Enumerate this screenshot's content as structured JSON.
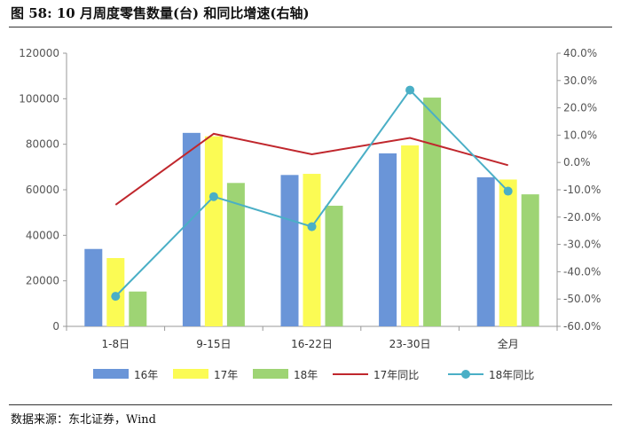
{
  "title": "图 58:  10 月周度零售数量(台)  和同比增速(右轴)",
  "source": "数据来源：东北证券，Wind",
  "chart_data": {
    "type": "bar",
    "categories": [
      "1-8日",
      "9-15日",
      "16-22日",
      "23-30日",
      "全月"
    ],
    "series": [
      {
        "name": "16年",
        "type": "bar",
        "axis": "left",
        "color": "#6a95d8",
        "values": [
          34000,
          85000,
          66500,
          76000,
          65500
        ]
      },
      {
        "name": "17年",
        "type": "bar",
        "axis": "left",
        "color": "#fbfb54",
        "values": [
          30000,
          83500,
          67000,
          79500,
          64500
        ]
      },
      {
        "name": "18年",
        "type": "bar",
        "axis": "left",
        "color": "#9ed474",
        "values": [
          15300,
          63000,
          53000,
          100500,
          58000
        ]
      },
      {
        "name": "17年同比",
        "type": "line",
        "axis": "right",
        "color": "#c0272d",
        "marker": false,
        "values": [
          -15.5,
          10.5,
          3.0,
          9.0,
          -1.0
        ]
      },
      {
        "name": "18年同比",
        "type": "line",
        "axis": "right",
        "color": "#4aafc6",
        "marker": true,
        "values": [
          -49.0,
          -12.5,
          -23.5,
          26.5,
          -10.5
        ]
      }
    ],
    "y_left": {
      "min": 0,
      "max": 120000,
      "step": 20000,
      "ticks": [
        "0",
        "20000",
        "40000",
        "60000",
        "80000",
        "100000",
        "120000"
      ]
    },
    "y_right": {
      "min": -60,
      "max": 40,
      "step": 10,
      "ticks": [
        "-60.0%",
        "-50.0%",
        "-40.0%",
        "-30.0%",
        "-20.0%",
        "-10.0%",
        "0.0%",
        "10.0%",
        "20.0%",
        "30.0%",
        "40.0%"
      ]
    },
    "grid": false,
    "legend": "bottom"
  }
}
